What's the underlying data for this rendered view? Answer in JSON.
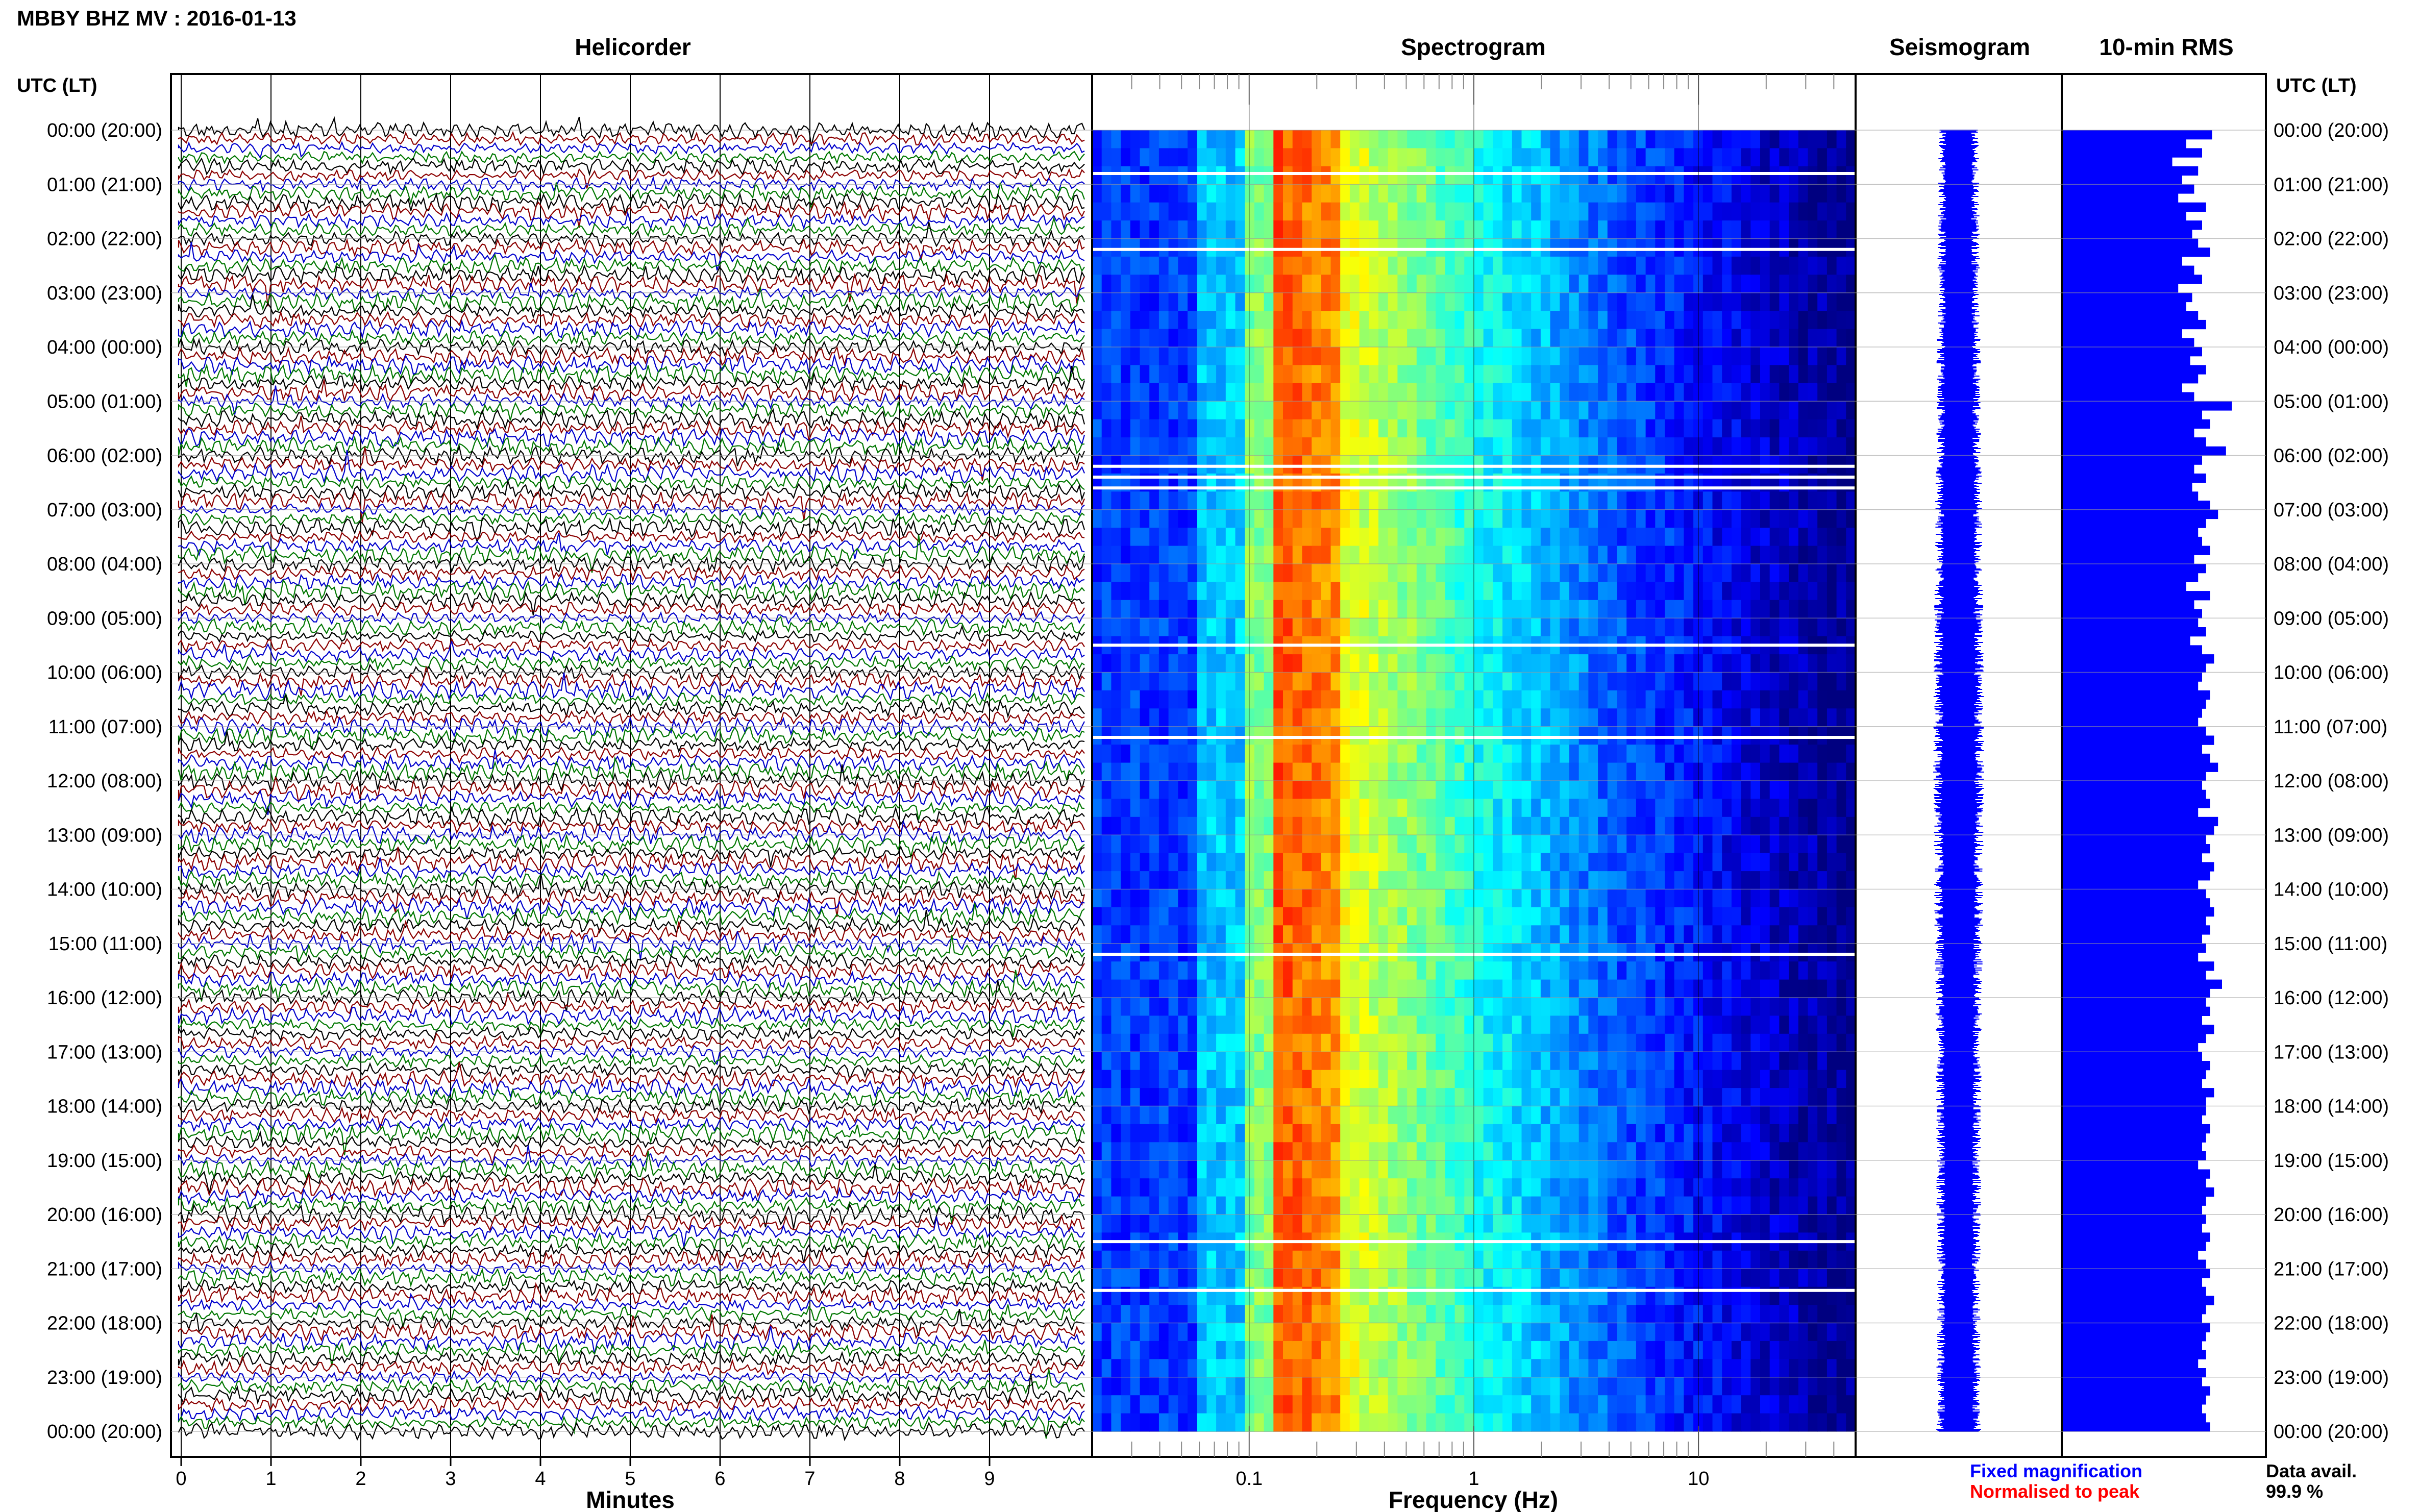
{
  "header": {
    "title": "MBBY BHZ MV : 2016-01-13",
    "utc_label": "UTC (LT)"
  },
  "panels": {
    "helicorder": "Helicorder",
    "spectrogram": "Spectrogram",
    "seismogram": "Seismogram",
    "rms": "10-min RMS"
  },
  "footer": {
    "minutes_label": "Minutes",
    "frequency_label": "Frequency (Hz)",
    "fixed_magnification": "Fixed magnification",
    "normalised_to_peak": "Normalised to peak",
    "data_avail_label": "Data avail.",
    "data_avail_value": "99.9 %"
  },
  "colors": {
    "trace_cycle": [
      "#000000",
      "#8b0000",
      "#0000cc",
      "#007700"
    ],
    "fixed_magnification": "#0000ff",
    "normalised_to_peak": "#ff0000",
    "rms_bar": "#0000ff",
    "seismogram": "#0000ff"
  },
  "chart_data": [
    {
      "type": "line",
      "panel": "helicorder",
      "title": "Helicorder",
      "xlabel": "Minutes",
      "x_ticks": [
        0,
        1,
        2,
        3,
        4,
        5,
        6,
        7,
        8,
        9
      ],
      "xlim": [
        0,
        10
      ],
      "rows_per_hour": 6,
      "hours": 24,
      "y_tick_labels": [
        "00:00 (20:00)",
        "01:00 (21:00)",
        "02:00 (22:00)",
        "03:00 (23:00)",
        "04:00 (00:00)",
        "05:00 (01:00)",
        "06:00 (02:00)",
        "07:00 (03:00)",
        "08:00 (04:00)",
        "09:00 (05:00)",
        "10:00 (06:00)",
        "11:00 (07:00)",
        "12:00 (08:00)",
        "13:00 (09:00)",
        "14:00 (10:00)",
        "15:00 (11:00)",
        "16:00 (12:00)",
        "17:00 (13:00)",
        "18:00 (14:00)",
        "19:00 (15:00)",
        "20:00 (16:00)",
        "21:00 (17:00)",
        "22:00 (18:00)",
        "23:00 (19:00)",
        "00:00 (20:00)"
      ]
    },
    {
      "type": "heatmap",
      "panel": "spectrogram",
      "title": "Spectrogram",
      "xlabel": "Frequency (Hz)",
      "x_scale": "log",
      "xlim": [
        0.02,
        50
      ],
      "x_ticks": [
        0.1,
        1,
        10
      ],
      "colormap": "jet",
      "gap_rows_hours": [
        0.8,
        2.2,
        6.2,
        6.4,
        6.6,
        9.5,
        11.2,
        15.2,
        20.5,
        21.4
      ],
      "peak_band_hz": [
        0.13,
        0.25
      ]
    },
    {
      "type": "line",
      "panel": "seismogram",
      "title": "Seismogram",
      "amplitude_profile_hours": [
        0,
        6,
        11,
        15,
        17,
        22,
        24
      ],
      "amplitude_profile_values": [
        0.35,
        0.4,
        0.45,
        0.42,
        0.4,
        0.38,
        0.4
      ]
    },
    {
      "type": "bar",
      "panel": "rms",
      "title": "10-min RMS",
      "orientation": "horizontal",
      "interval_minutes": 10,
      "values": [
        0.75,
        0.62,
        0.7,
        0.55,
        0.68,
        0.6,
        0.66,
        0.58,
        0.72,
        0.62,
        0.7,
        0.65,
        0.68,
        0.74,
        0.6,
        0.66,
        0.7,
        0.58,
        0.65,
        0.62,
        0.68,
        0.72,
        0.6,
        0.66,
        0.7,
        0.64,
        0.72,
        0.68,
        0.6,
        0.66,
        0.85,
        0.7,
        0.74,
        0.66,
        0.72,
        0.82,
        0.7,
        0.66,
        0.72,
        0.65,
        0.68,
        0.74,
        0.78,
        0.72,
        0.68,
        0.7,
        0.74,
        0.66,
        0.72,
        0.68,
        0.62,
        0.74,
        0.66,
        0.7,
        0.68,
        0.72,
        0.64,
        0.7,
        0.76,
        0.72,
        0.7,
        0.68,
        0.74,
        0.72,
        0.7,
        0.68,
        0.72,
        0.76,
        0.7,
        0.74,
        0.78,
        0.72,
        0.7,
        0.72,
        0.74,
        0.68,
        0.78,
        0.76,
        0.72,
        0.74,
        0.7,
        0.76,
        0.74,
        0.68,
        0.72,
        0.74,
        0.76,
        0.72,
        0.74,
        0.7,
        0.72,
        0.68,
        0.76,
        0.72,
        0.8,
        0.74,
        0.72,
        0.74,
        0.7,
        0.76,
        0.72,
        0.68,
        0.7,
        0.74,
        0.72,
        0.7,
        0.76,
        0.72,
        0.72,
        0.7,
        0.74,
        0.72,
        0.7,
        0.72,
        0.68,
        0.74,
        0.72,
        0.76,
        0.72,
        0.7,
        0.72,
        0.7,
        0.74,
        0.72,
        0.68,
        0.72,
        0.74,
        0.7,
        0.72,
        0.76,
        0.72,
        0.7,
        0.74,
        0.72,
        0.7,
        0.72,
        0.68,
        0.72,
        0.7,
        0.74,
        0.72,
        0.7,
        0.72,
        0.74
      ]
    }
  ]
}
